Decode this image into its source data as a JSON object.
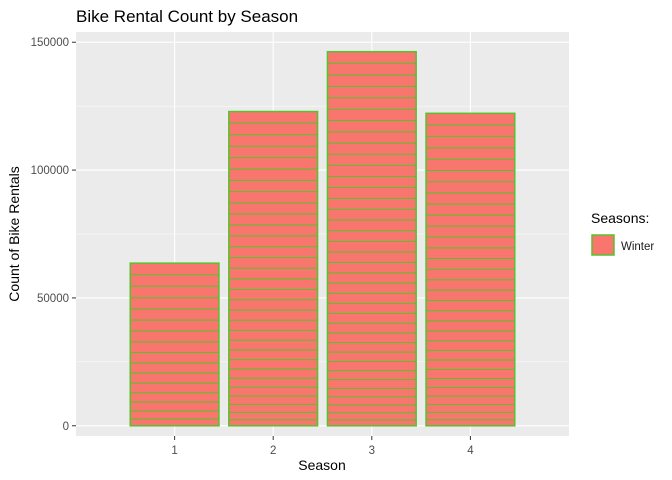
{
  "chart_data": {
    "type": "bar",
    "title": "Bike Rental Count by Season",
    "xlabel": "Season",
    "ylabel": "Count of Bike Rentals",
    "categories": [
      "1",
      "2",
      "3",
      "4"
    ],
    "values": [
      63600,
      122900,
      146300,
      122200
    ],
    "ylim": [
      -4000,
      154000
    ],
    "yticks": [
      0,
      50000,
      100000,
      150000
    ],
    "ytick_labels": [
      "0",
      "50000",
      "100000",
      "150000"
    ],
    "grid": true,
    "legend": {
      "title": "Seasons:",
      "position": "right",
      "entries": [
        {
          "label": "Winter"
        }
      ]
    },
    "colors": {
      "panel_background": "#ebebeb",
      "grid_major": "#ffffff",
      "bar_fill": "#f8766d",
      "bar_outline": "#57c22c"
    }
  }
}
